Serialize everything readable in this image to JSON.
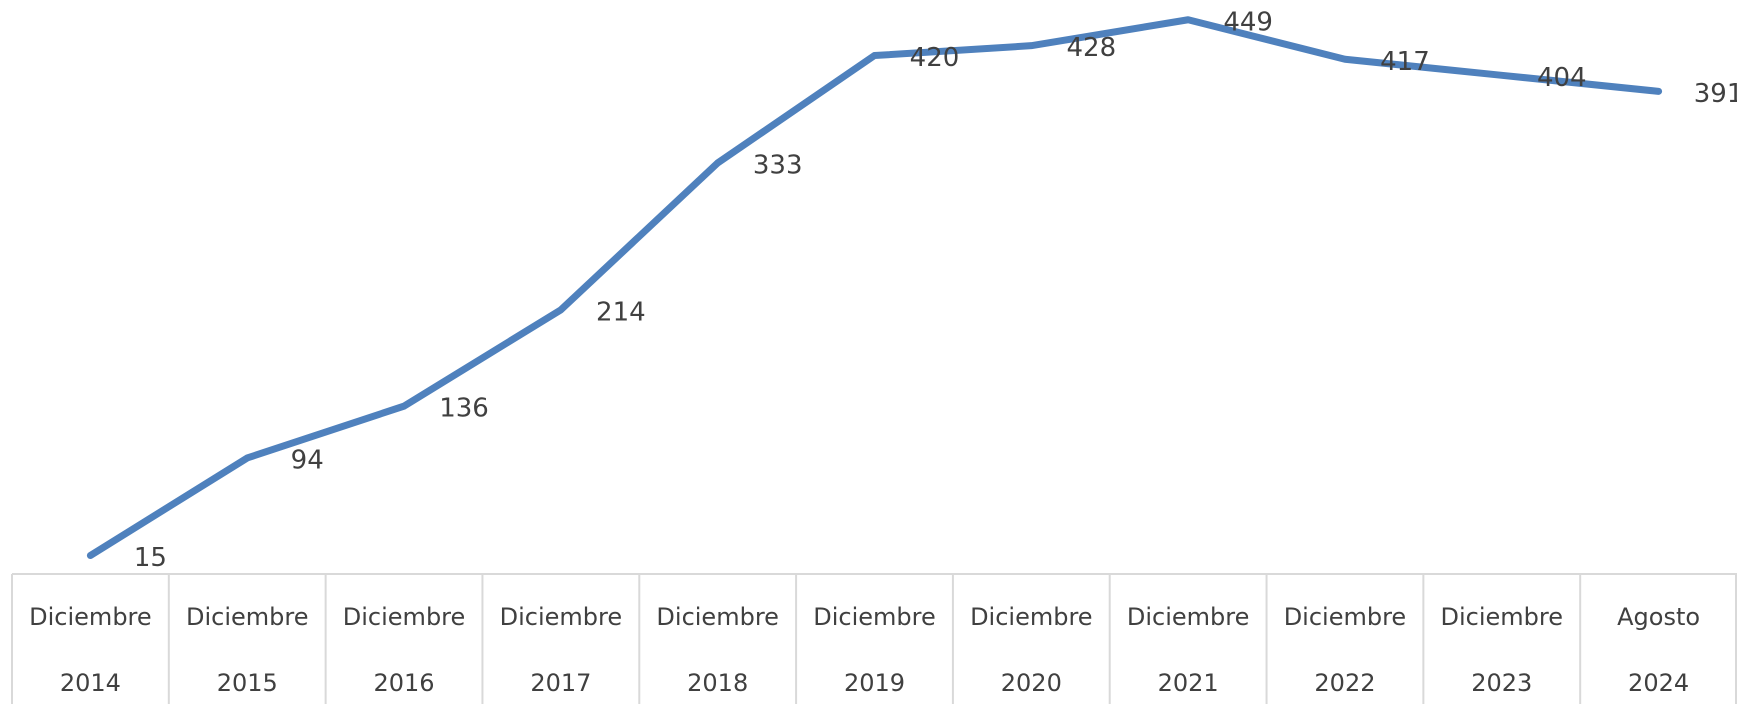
{
  "chart_data": {
    "type": "line",
    "categories": [
      [
        "Diciembre",
        "2014"
      ],
      [
        "Diciembre",
        "2015"
      ],
      [
        "Diciembre",
        "2016"
      ],
      [
        "Diciembre",
        "2017"
      ],
      [
        "Diciembre",
        "2018"
      ],
      [
        "Diciembre",
        "2019"
      ],
      [
        "Diciembre",
        "2020"
      ],
      [
        "Diciembre",
        "2021"
      ],
      [
        "Diciembre",
        "2022"
      ],
      [
        "Diciembre",
        "2023"
      ],
      [
        "Agosto",
        "2024"
      ]
    ],
    "values": [
      15,
      94,
      136,
      214,
      333,
      420,
      428,
      449,
      417,
      404,
      391
    ],
    "color": "#4f81bd",
    "ylim": [
      0,
      465
    ]
  }
}
